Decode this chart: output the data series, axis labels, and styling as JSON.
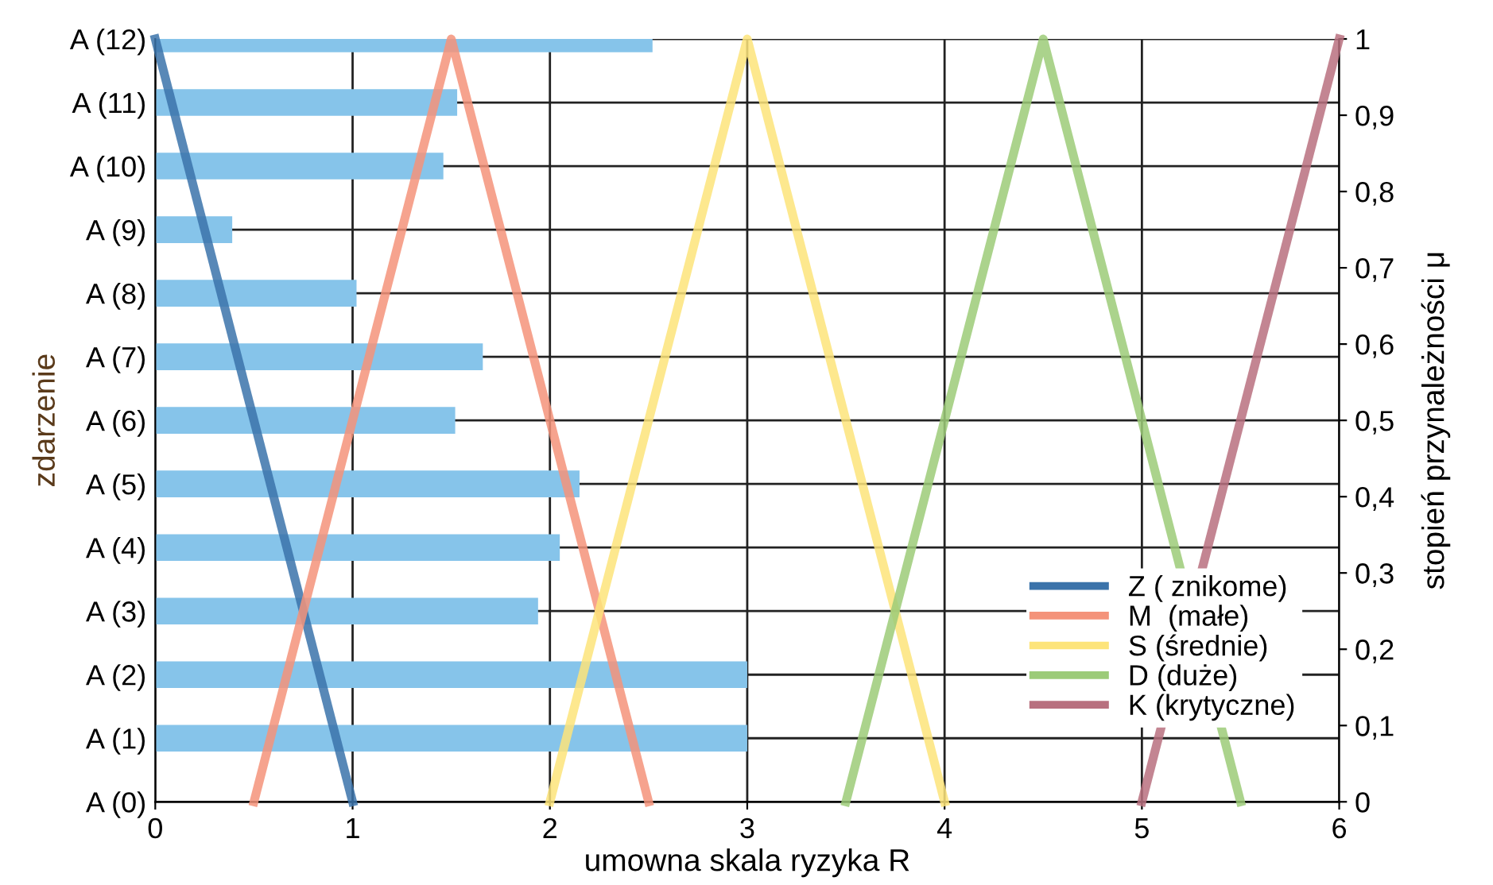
{
  "chart_data": [
    {
      "type": "bar",
      "orientation": "horizontal",
      "categories": [
        "A (12)",
        "A (11)",
        "A (10)",
        "A (9)",
        "A (8)",
        "A (7)",
        "A (6)",
        "A (5)",
        "A (4)",
        "A (3)",
        "A (2)",
        "A (1)",
        "A (0)"
      ],
      "series": [
        {
          "color": "#86c4ea",
          "values": [
            2.52,
            1.53,
            1.46,
            0.39,
            1.02,
            1.66,
            1.52,
            2.15,
            2.05,
            1.94,
            3.0,
            3.0,
            null
          ]
        }
      ],
      "xlim": [
        0,
        6
      ],
      "xticks": [
        0,
        1,
        2,
        3,
        4,
        5,
        6
      ],
      "xlabel": "umowna skala ryzyka R",
      "ylabel": "zdarzenie",
      "grid": true
    },
    {
      "type": "line",
      "series": [
        {
          "name": "Z ( znikome)",
          "color": "#3b73aa",
          "x": [
            0,
            1
          ],
          "values": [
            1,
            0
          ]
        },
        {
          "name": "M  (małe)",
          "color": "#f4937a",
          "x": [
            0.5,
            1.5,
            2.5
          ],
          "values": [
            0,
            1,
            0
          ]
        },
        {
          "name": "S (średnie)",
          "color": "#fde47a",
          "x": [
            2,
            3,
            4
          ],
          "values": [
            0,
            1,
            0
          ]
        },
        {
          "name": "D (duże)",
          "color": "#9ccb78",
          "x": [
            3.5,
            4.5,
            5.5
          ],
          "values": [
            0,
            1,
            0
          ]
        },
        {
          "name": "K (krytyczne)",
          "color": "#b8707f",
          "x": [
            5,
            6
          ],
          "values": [
            0,
            1
          ]
        }
      ],
      "xlim": [
        0,
        6
      ],
      "xticks": [
        0,
        1,
        2,
        3,
        4,
        5,
        6
      ],
      "ylim": [
        0,
        1
      ],
      "yticks": [
        0,
        {
          "value": 0.1,
          "label": "0,1"
        },
        {
          "value": 0.2,
          "label": "0,2"
        },
        {
          "value": 0.3,
          "label": "0,3"
        },
        {
          "value": 0.4,
          "label": "0,4"
        },
        {
          "value": 0.5,
          "label": "0,5"
        },
        {
          "value": 0.6,
          "label": "0,6"
        },
        {
          "value": 0.7,
          "label": "0,7"
        },
        {
          "value": 0.8,
          "label": "0,8"
        },
        {
          "value": 0.9,
          "label": "0,9"
        },
        1
      ],
      "ylabel": "stopień przynależności μ",
      "tick_labels": "y",
      "legend": "bottom right",
      "marker": "none",
      "line_style": "solid"
    }
  ]
}
